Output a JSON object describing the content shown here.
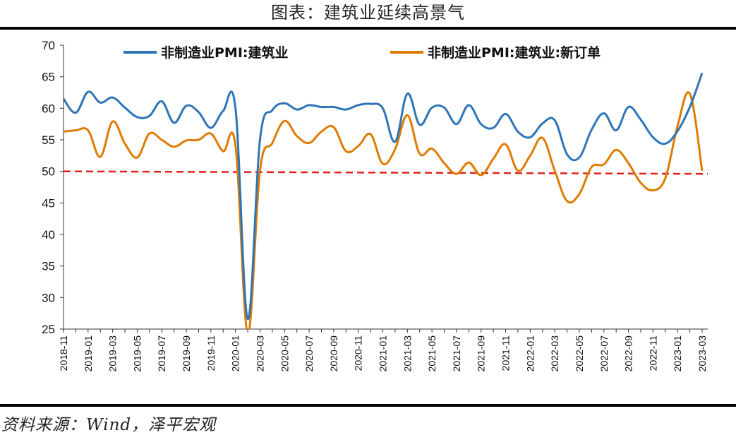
{
  "title": "图表：建筑业延续高景气",
  "source": "资料来源：Wind，泽平宏观",
  "colors": {
    "series1": "#2E75B6",
    "series2": "#E07B00",
    "reference": "#E0201B"
  },
  "chart_data": {
    "type": "line",
    "title": "图表：建筑业延续高景气",
    "xlabel": "",
    "ylabel": "",
    "ylim": [
      25,
      70
    ],
    "yticks": [
      25,
      30,
      35,
      40,
      45,
      50,
      55,
      60,
      65,
      70
    ],
    "xticklabels": [
      "2018-11",
      "2019-01",
      "2019-03",
      "2019-05",
      "2019-07",
      "2019-09",
      "2019-11",
      "2020-01",
      "2020-03",
      "2020-05",
      "2020-07",
      "2020-09",
      "2020-11",
      "2021-01",
      "2021-03",
      "2021-05",
      "2021-07",
      "2021-09",
      "2021-11",
      "2022-01",
      "2022-03",
      "2022-05",
      "2022-07",
      "2022-09",
      "2022-11",
      "2023-01",
      "2023-03"
    ],
    "x": [
      "2018-11",
      "2018-12",
      "2019-01",
      "2019-02",
      "2019-03",
      "2019-04",
      "2019-05",
      "2019-06",
      "2019-07",
      "2019-08",
      "2019-09",
      "2019-10",
      "2019-11",
      "2019-12",
      "2020-01",
      "2020-02",
      "2020-03",
      "2020-04",
      "2020-05",
      "2020-06",
      "2020-07",
      "2020-08",
      "2020-09",
      "2020-10",
      "2020-11",
      "2020-12",
      "2021-01",
      "2021-02",
      "2021-03",
      "2021-04",
      "2021-05",
      "2021-06",
      "2021-07",
      "2021-08",
      "2021-09",
      "2021-10",
      "2021-11",
      "2021-12",
      "2022-01",
      "2022-02",
      "2022-03",
      "2022-04",
      "2022-05",
      "2022-06",
      "2022-07",
      "2022-08",
      "2022-09",
      "2022-10",
      "2022-11",
      "2022-12",
      "2023-01",
      "2023-02",
      "2023-03"
    ],
    "grid": false,
    "legend_position": "top",
    "series": [
      {
        "name": "非制造业PMI:建筑业",
        "color": "#2E75B6",
        "values": [
          61.5,
          59.3,
          62.6,
          60.9,
          61.7,
          60.1,
          58.6,
          58.8,
          61.1,
          57.7,
          60.4,
          59.4,
          56.9,
          59.6,
          60.0,
          26.6,
          55.1,
          59.7,
          60.8,
          59.8,
          60.5,
          60.2,
          60.2,
          59.8,
          60.5,
          60.7,
          60.0,
          54.7,
          62.3,
          57.4,
          60.1,
          60.1,
          57.5,
          60.5,
          57.5,
          56.9,
          59.1,
          56.3,
          55.4,
          57.6,
          58.1,
          52.7,
          52.2,
          56.6,
          59.2,
          56.5,
          60.2,
          58.2,
          55.4,
          54.4,
          56.4,
          60.2,
          65.6
        ]
      },
      {
        "name": "非制造业PMI:建筑业:新订单",
        "color": "#E07B00",
        "values": [
          56.3,
          56.5,
          56.5,
          52.3,
          57.9,
          54.4,
          52.2,
          56.0,
          55.0,
          53.9,
          54.9,
          55.0,
          56.0,
          53.2,
          54.1,
          24.3,
          50.2,
          54.5,
          58.0,
          55.6,
          54.5,
          56.3,
          57.0,
          53.2,
          54.0,
          55.9,
          51.2,
          53.5,
          58.9,
          52.8,
          53.6,
          51.3,
          49.6,
          51.4,
          49.4,
          52.0,
          54.3,
          50.1,
          52.5,
          55.3,
          50.1,
          45.3,
          46.4,
          50.7,
          51.1,
          53.4,
          51.3,
          48.2,
          47.0,
          48.9,
          57.2,
          62.3,
          50.1
        ]
      },
      {
        "name": "",
        "type": "reference-line",
        "color": "#E0201B",
        "from": 50.0,
        "to": 49.6
      }
    ]
  }
}
